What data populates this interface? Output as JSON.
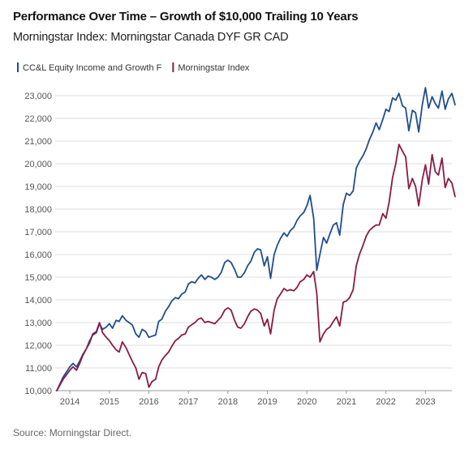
{
  "header": {
    "title": "Performance Over Time – Growth of $10,000 Trailing 10 Years",
    "subtitle": "Morningstar Index: Morningstar Canada DYF GR CAD"
  },
  "footer": {
    "source": "Source: Morningstar Direct."
  },
  "colors": {
    "fund": "#1f4e8c",
    "index": "#8b1a45",
    "grid": "#dddddd",
    "axis": "#999999"
  },
  "chart_data": {
    "type": "line",
    "title": "Performance Over Time – Growth of $10,000 Trailing 10 Years",
    "subtitle": "Morningstar Index: Morningstar Canada DYF GR CAD",
    "xlabel": "",
    "ylabel": "",
    "xlim": [
      2013.67,
      2023.67
    ],
    "ylim": [
      10000,
      23500
    ],
    "x_ticks": [
      2014,
      2015,
      2016,
      2017,
      2018,
      2019,
      2020,
      2021,
      2022,
      2023
    ],
    "x_tick_labels": [
      "2014",
      "2015",
      "2016",
      "2017",
      "2018",
      "2019",
      "2020",
      "2021",
      "2022",
      "2023"
    ],
    "y_ticks": [
      10000,
      11000,
      12000,
      13000,
      14000,
      15000,
      16000,
      17000,
      18000,
      19000,
      20000,
      21000,
      22000,
      23000
    ],
    "y_tick_labels": [
      "10,000",
      "11,000",
      "12,000",
      "13,000",
      "14,000",
      "15,000",
      "16,000",
      "17,000",
      "18,000",
      "19,000",
      "20,000",
      "21,000",
      "22,000",
      "23,000"
    ],
    "grid": "horizontal",
    "legend_position": "top-left",
    "series": [
      {
        "name": "CC&L Equity Income and Growth F",
        "color": "#1f4e8c",
        "points": [
          [
            2013.67,
            10000
          ],
          [
            2013.83,
            10600
          ],
          [
            2014.0,
            11050
          ],
          [
            2014.08,
            11200
          ],
          [
            2014.17,
            11050
          ],
          [
            2014.25,
            11300
          ],
          [
            2014.33,
            11600
          ],
          [
            2014.42,
            11850
          ],
          [
            2014.5,
            12200
          ],
          [
            2014.58,
            12450
          ],
          [
            2014.67,
            12550
          ],
          [
            2014.75,
            12950
          ],
          [
            2014.83,
            12700
          ],
          [
            2014.92,
            12800
          ],
          [
            2015.0,
            12950
          ],
          [
            2015.08,
            12750
          ],
          [
            2015.17,
            13100
          ],
          [
            2015.25,
            13050
          ],
          [
            2015.33,
            13300
          ],
          [
            2015.42,
            13100
          ],
          [
            2015.5,
            13000
          ],
          [
            2015.58,
            12900
          ],
          [
            2015.67,
            12500
          ],
          [
            2015.75,
            12350
          ],
          [
            2015.83,
            12700
          ],
          [
            2015.92,
            12600
          ],
          [
            2016.0,
            12350
          ],
          [
            2016.08,
            12400
          ],
          [
            2016.17,
            12450
          ],
          [
            2016.25,
            13050
          ],
          [
            2016.33,
            13150
          ],
          [
            2016.42,
            13500
          ],
          [
            2016.5,
            13700
          ],
          [
            2016.58,
            13950
          ],
          [
            2016.67,
            14100
          ],
          [
            2016.75,
            14050
          ],
          [
            2016.83,
            14250
          ],
          [
            2016.92,
            14350
          ],
          [
            2017.0,
            14700
          ],
          [
            2017.08,
            14800
          ],
          [
            2017.17,
            14750
          ],
          [
            2017.25,
            14950
          ],
          [
            2017.33,
            15100
          ],
          [
            2017.42,
            14900
          ],
          [
            2017.5,
            15050
          ],
          [
            2017.58,
            15000
          ],
          [
            2017.67,
            14900
          ],
          [
            2017.75,
            15000
          ],
          [
            2017.83,
            15200
          ],
          [
            2017.92,
            15650
          ],
          [
            2018.0,
            15750
          ],
          [
            2018.08,
            15650
          ],
          [
            2018.17,
            15350
          ],
          [
            2018.25,
            15000
          ],
          [
            2018.33,
            15000
          ],
          [
            2018.42,
            15200
          ],
          [
            2018.5,
            15500
          ],
          [
            2018.58,
            15700
          ],
          [
            2018.67,
            16100
          ],
          [
            2018.75,
            16250
          ],
          [
            2018.83,
            16200
          ],
          [
            2018.92,
            15500
          ],
          [
            2019.0,
            15900
          ],
          [
            2019.08,
            14950
          ],
          [
            2019.17,
            16000
          ],
          [
            2019.25,
            16400
          ],
          [
            2019.33,
            16700
          ],
          [
            2019.42,
            16950
          ],
          [
            2019.5,
            16800
          ],
          [
            2019.58,
            17050
          ],
          [
            2019.67,
            17200
          ],
          [
            2019.75,
            17500
          ],
          [
            2019.83,
            17700
          ],
          [
            2019.92,
            17850
          ],
          [
            2020.0,
            18150
          ],
          [
            2020.08,
            18600
          ],
          [
            2020.17,
            17600
          ],
          [
            2020.25,
            15300
          ],
          [
            2020.33,
            16000
          ],
          [
            2020.42,
            16750
          ],
          [
            2020.5,
            16500
          ],
          [
            2020.58,
            16900
          ],
          [
            2020.67,
            17300
          ],
          [
            2020.75,
            17400
          ],
          [
            2020.83,
            16850
          ],
          [
            2020.92,
            18200
          ],
          [
            2021.0,
            18700
          ],
          [
            2021.08,
            18600
          ],
          [
            2021.17,
            18800
          ],
          [
            2021.25,
            19800
          ],
          [
            2021.33,
            20100
          ],
          [
            2021.42,
            20350
          ],
          [
            2021.5,
            20650
          ],
          [
            2021.58,
            21050
          ],
          [
            2021.67,
            21400
          ],
          [
            2021.75,
            21800
          ],
          [
            2021.83,
            21500
          ],
          [
            2021.92,
            21950
          ],
          [
            2022.0,
            22400
          ],
          [
            2022.08,
            22300
          ],
          [
            2022.17,
            22900
          ],
          [
            2022.25,
            22800
          ],
          [
            2022.33,
            23100
          ],
          [
            2022.42,
            22550
          ],
          [
            2022.5,
            22450
          ],
          [
            2022.58,
            21450
          ],
          [
            2022.67,
            22350
          ],
          [
            2022.75,
            22250
          ],
          [
            2022.83,
            21400
          ],
          [
            2022.92,
            22600
          ],
          [
            2023.0,
            23350
          ],
          [
            2023.08,
            22450
          ],
          [
            2023.17,
            22950
          ],
          [
            2023.25,
            22650
          ],
          [
            2023.33,
            22450
          ],
          [
            2023.42,
            23200
          ],
          [
            2023.5,
            22400
          ],
          [
            2023.58,
            22850
          ],
          [
            2023.67,
            23100
          ],
          [
            2023.75,
            22600
          ]
        ]
      },
      {
        "name": "Morningstar Index",
        "color": "#8b1a45",
        "points": [
          [
            2013.67,
            10000
          ],
          [
            2013.83,
            10500
          ],
          [
            2014.0,
            10900
          ],
          [
            2014.08,
            11050
          ],
          [
            2014.17,
            10900
          ],
          [
            2014.25,
            11200
          ],
          [
            2014.33,
            11550
          ],
          [
            2014.42,
            11850
          ],
          [
            2014.5,
            12100
          ],
          [
            2014.58,
            12500
          ],
          [
            2014.67,
            12600
          ],
          [
            2014.75,
            13000
          ],
          [
            2014.83,
            12550
          ],
          [
            2014.92,
            12350
          ],
          [
            2015.0,
            12200
          ],
          [
            2015.08,
            12000
          ],
          [
            2015.17,
            11800
          ],
          [
            2015.25,
            11700
          ],
          [
            2015.33,
            12150
          ],
          [
            2015.42,
            11900
          ],
          [
            2015.5,
            11600
          ],
          [
            2015.58,
            11300
          ],
          [
            2015.67,
            11000
          ],
          [
            2015.75,
            10500
          ],
          [
            2015.83,
            10800
          ],
          [
            2015.92,
            10750
          ],
          [
            2016.0,
            10150
          ],
          [
            2016.08,
            10400
          ],
          [
            2016.17,
            10500
          ],
          [
            2016.25,
            11050
          ],
          [
            2016.33,
            11350
          ],
          [
            2016.42,
            11550
          ],
          [
            2016.5,
            11700
          ],
          [
            2016.58,
            11950
          ],
          [
            2016.67,
            12200
          ],
          [
            2016.75,
            12300
          ],
          [
            2016.83,
            12450
          ],
          [
            2016.92,
            12500
          ],
          [
            2017.0,
            12800
          ],
          [
            2017.08,
            12900
          ],
          [
            2017.17,
            13000
          ],
          [
            2017.25,
            13150
          ],
          [
            2017.33,
            13200
          ],
          [
            2017.42,
            13000
          ],
          [
            2017.5,
            13050
          ],
          [
            2017.58,
            13000
          ],
          [
            2017.67,
            12950
          ],
          [
            2017.75,
            13100
          ],
          [
            2017.83,
            13250
          ],
          [
            2017.92,
            13550
          ],
          [
            2018.0,
            13650
          ],
          [
            2018.08,
            13550
          ],
          [
            2018.17,
            13100
          ],
          [
            2018.25,
            12800
          ],
          [
            2018.33,
            12750
          ],
          [
            2018.42,
            12950
          ],
          [
            2018.5,
            13250
          ],
          [
            2018.58,
            13500
          ],
          [
            2018.67,
            13600
          ],
          [
            2018.75,
            13550
          ],
          [
            2018.83,
            13400
          ],
          [
            2018.92,
            12850
          ],
          [
            2019.0,
            13150
          ],
          [
            2019.08,
            12500
          ],
          [
            2019.17,
            13550
          ],
          [
            2019.25,
            14050
          ],
          [
            2019.33,
            14250
          ],
          [
            2019.42,
            14500
          ],
          [
            2019.5,
            14400
          ],
          [
            2019.58,
            14450
          ],
          [
            2019.67,
            14400
          ],
          [
            2019.75,
            14550
          ],
          [
            2019.83,
            14800
          ],
          [
            2019.92,
            14900
          ],
          [
            2020.0,
            15100
          ],
          [
            2020.08,
            15000
          ],
          [
            2020.17,
            15250
          ],
          [
            2020.25,
            14300
          ],
          [
            2020.33,
            12150
          ],
          [
            2020.42,
            12500
          ],
          [
            2020.5,
            12700
          ],
          [
            2020.58,
            12800
          ],
          [
            2020.67,
            13050
          ],
          [
            2020.75,
            13250
          ],
          [
            2020.83,
            12850
          ],
          [
            2020.92,
            13900
          ],
          [
            2021.0,
            13950
          ],
          [
            2021.08,
            14100
          ],
          [
            2021.17,
            14450
          ],
          [
            2021.25,
            15500
          ],
          [
            2021.33,
            16000
          ],
          [
            2021.42,
            16400
          ],
          [
            2021.5,
            16800
          ],
          [
            2021.58,
            17050
          ],
          [
            2021.67,
            17200
          ],
          [
            2021.75,
            17300
          ],
          [
            2021.83,
            17300
          ],
          [
            2021.92,
            17800
          ],
          [
            2022.0,
            17600
          ],
          [
            2022.08,
            18300
          ],
          [
            2022.17,
            19400
          ],
          [
            2022.25,
            20000
          ],
          [
            2022.33,
            20850
          ],
          [
            2022.42,
            20550
          ],
          [
            2022.5,
            20300
          ],
          [
            2022.58,
            18900
          ],
          [
            2022.67,
            19350
          ],
          [
            2022.75,
            19000
          ],
          [
            2022.83,
            18150
          ],
          [
            2022.92,
            19300
          ],
          [
            2023.0,
            19950
          ],
          [
            2023.08,
            19100
          ],
          [
            2023.17,
            20400
          ],
          [
            2023.25,
            19650
          ],
          [
            2023.33,
            19500
          ],
          [
            2023.42,
            20250
          ],
          [
            2023.5,
            18950
          ],
          [
            2023.58,
            19350
          ],
          [
            2023.67,
            19150
          ],
          [
            2023.75,
            18550
          ]
        ]
      }
    ]
  }
}
